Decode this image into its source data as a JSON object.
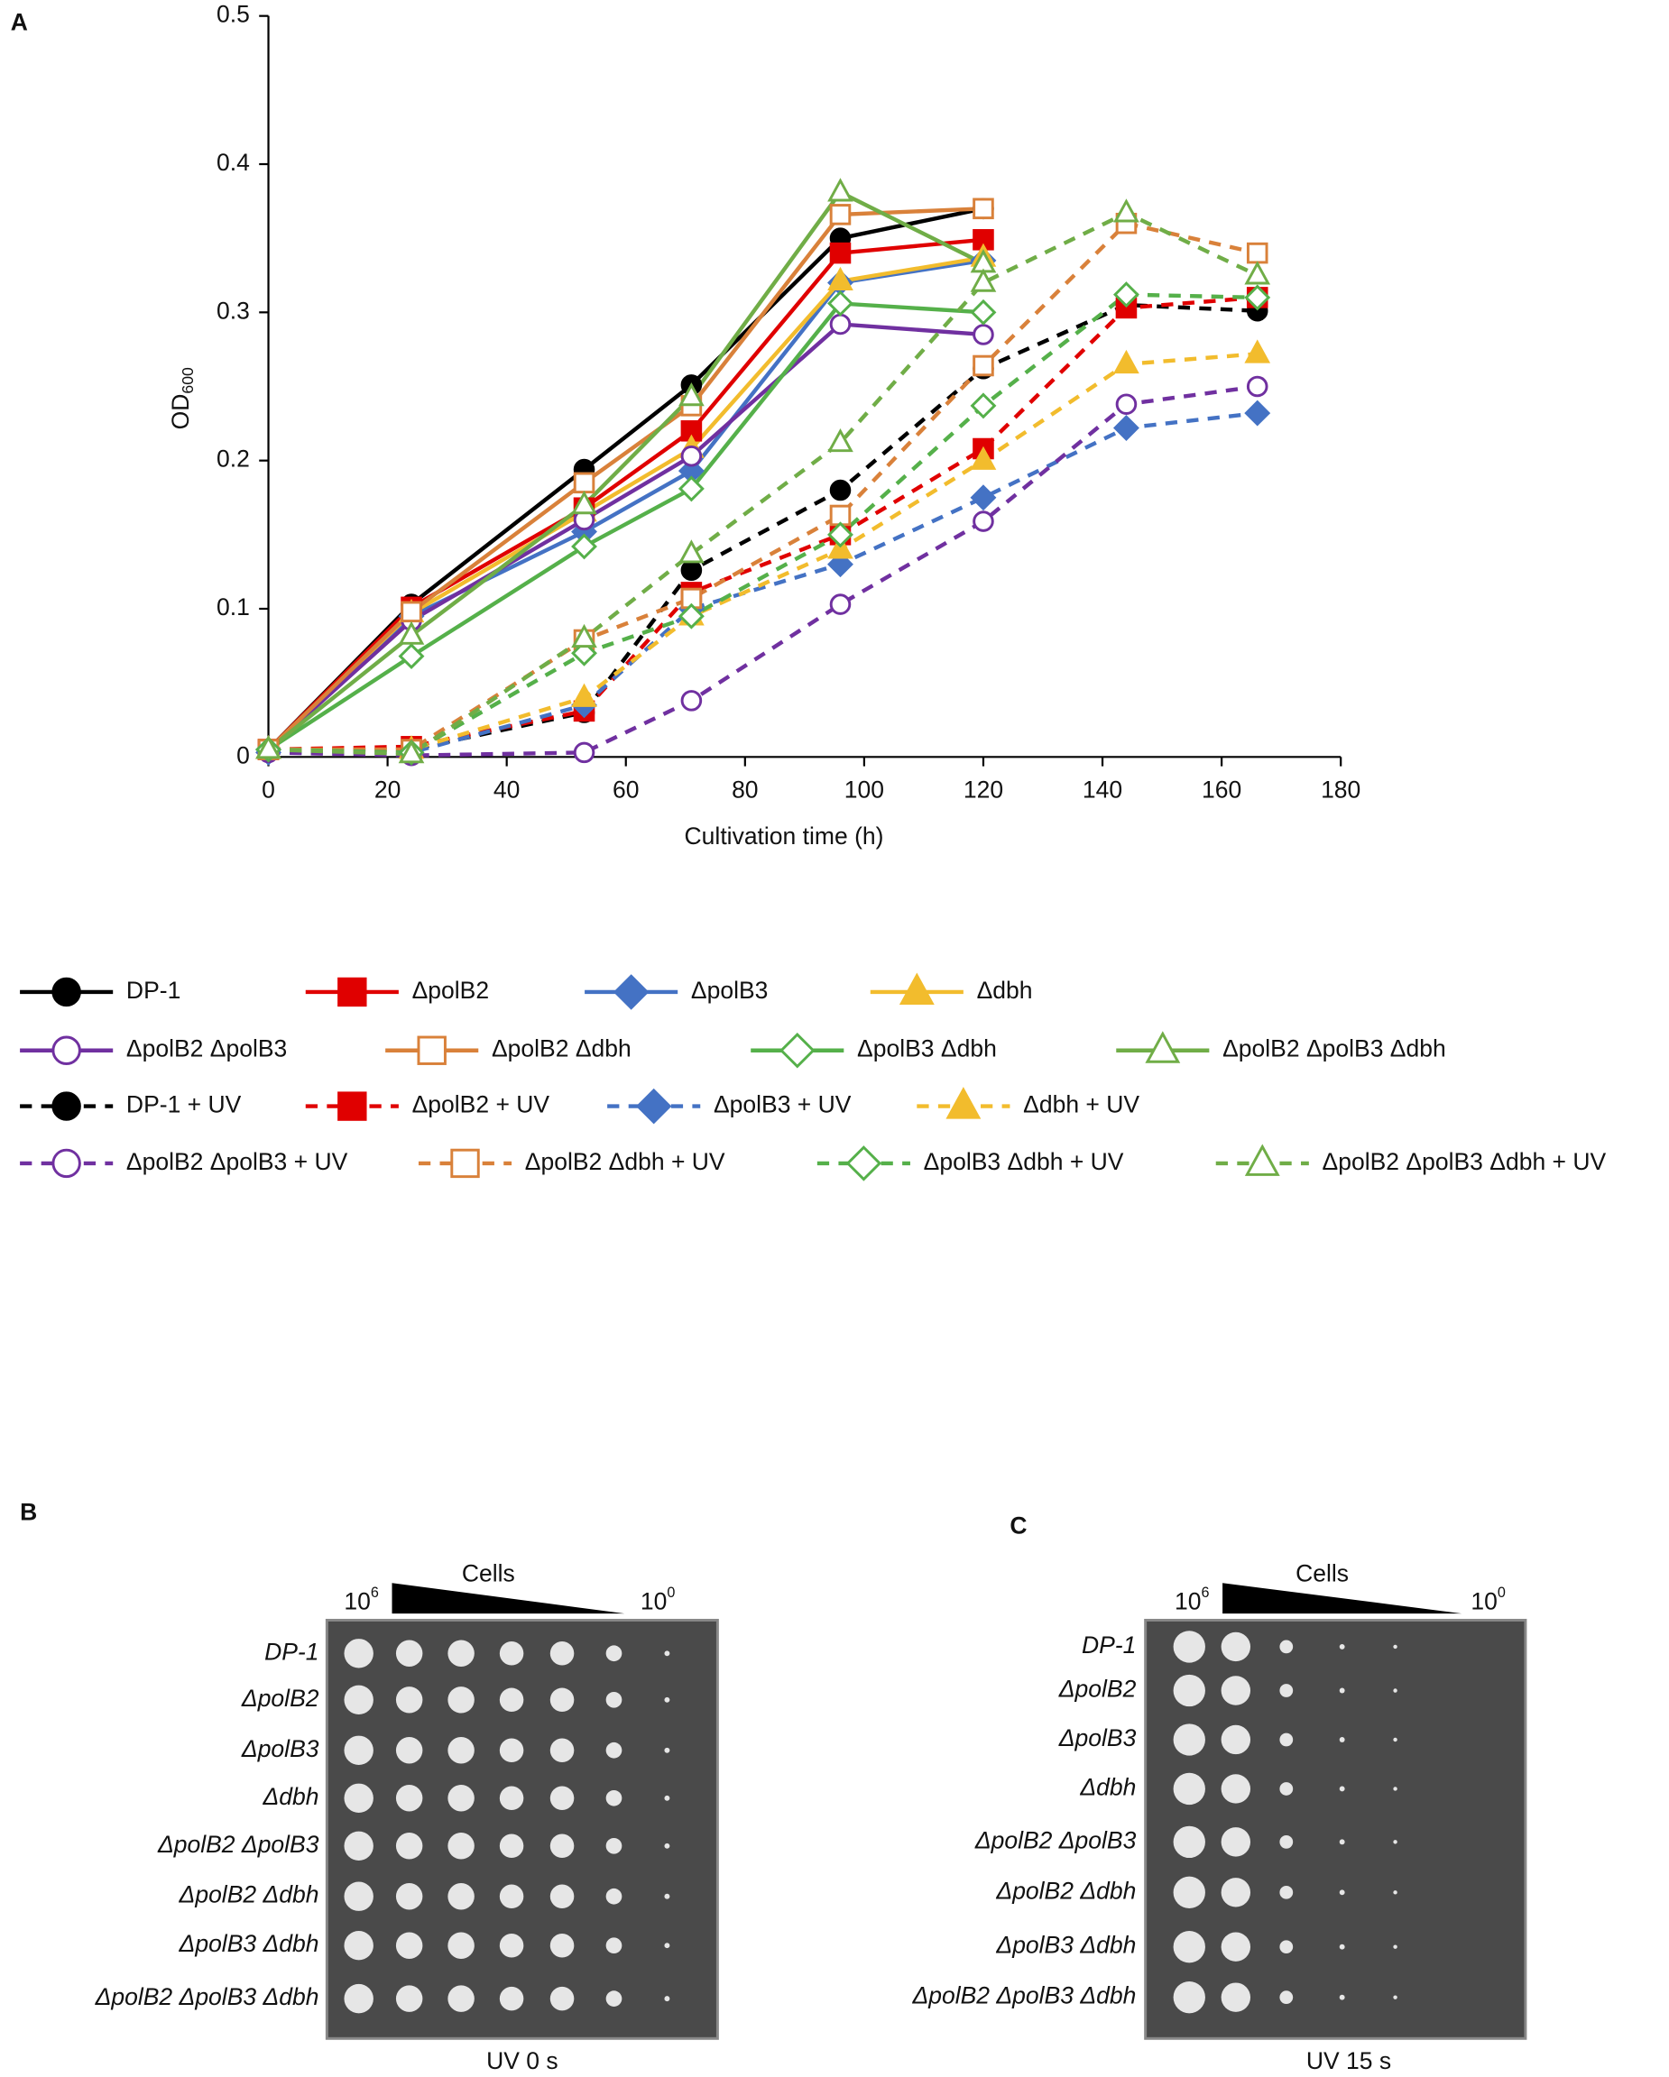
{
  "chart_data": {
    "type": "line",
    "panel_label": "A",
    "ylabel": "OD",
    "ylabel_sub": "600",
    "xlabel": "Cultivation time (h)",
    "x": [
      0,
      24,
      53,
      71,
      96,
      120,
      144,
      166
    ],
    "xlim": [
      0,
      180
    ],
    "xticks": [
      0,
      20,
      40,
      60,
      80,
      100,
      120,
      140,
      160,
      180
    ],
    "ylim": [
      0,
      0.5
    ],
    "yticks": [
      0,
      0.1,
      0.2,
      0.3,
      0.4,
      0.5
    ],
    "series": [
      {
        "name": "DP-1",
        "color": "#000000",
        "marker": "circle",
        "filled": true,
        "dashed": false,
        "values": [
          0.005,
          0.103,
          0.194,
          0.251,
          0.35,
          0.37,
          null,
          null
        ]
      },
      {
        "name": "ΔpolB2",
        "color": "#e00000",
        "marker": "square",
        "filled": true,
        "dashed": false,
        "values": [
          0.005,
          0.101,
          0.168,
          0.22,
          0.34,
          0.349,
          null,
          null
        ]
      },
      {
        "name": "ΔpolB3",
        "color": "#4472c4",
        "marker": "diamond",
        "filled": true,
        "dashed": false,
        "values": [
          0.005,
          0.095,
          0.152,
          0.193,
          0.32,
          0.335,
          null,
          null
        ]
      },
      {
        "name": "Δdbh",
        "color": "#f2bc2d",
        "marker": "triangle",
        "filled": true,
        "dashed": false,
        "values": [
          0.005,
          0.097,
          0.165,
          0.208,
          0.321,
          0.337,
          null,
          null
        ]
      },
      {
        "name": "ΔpolB2 ΔpolB3",
        "color": "#7030a0",
        "marker": "circle",
        "filled": false,
        "dashed": false,
        "values": [
          0.005,
          0.092,
          0.16,
          0.203,
          0.292,
          0.285,
          null,
          null
        ]
      },
      {
        "name": "ΔpolB2 Δdbh",
        "color": "#d9813a",
        "marker": "square",
        "filled": false,
        "dashed": false,
        "values": [
          0.005,
          0.098,
          0.185,
          0.237,
          0.366,
          0.37,
          null,
          null
        ]
      },
      {
        "name": "ΔpolB3 Δdbh",
        "color": "#55b04a",
        "marker": "diamond",
        "filled": false,
        "dashed": false,
        "values": [
          0.005,
          0.068,
          0.142,
          0.181,
          0.306,
          0.3,
          null,
          null
        ]
      },
      {
        "name": "ΔpolB2 ΔpolB3 Δdbh",
        "color": "#70ad47",
        "marker": "triangle",
        "filled": false,
        "dashed": false,
        "values": [
          0.005,
          0.082,
          0.17,
          0.243,
          0.381,
          0.333,
          null,
          null
        ]
      },
      {
        "name": "DP-1 + UV",
        "color": "#000000",
        "marker": "circle",
        "filled": true,
        "dashed": true,
        "values": [
          0.005,
          0.005,
          0.03,
          0.126,
          0.18,
          0.262,
          0.305,
          0.301
        ]
      },
      {
        "name": "ΔpolB2 + UV",
        "color": "#e00000",
        "marker": "square",
        "filled": true,
        "dashed": true,
        "values": [
          0.005,
          0.007,
          0.031,
          0.111,
          0.15,
          0.208,
          0.303,
          0.31
        ]
      },
      {
        "name": "ΔpolB3 + UV",
        "color": "#4472c4",
        "marker": "diamond",
        "filled": true,
        "dashed": true,
        "values": [
          0.003,
          0.003,
          0.035,
          0.1,
          0.13,
          0.175,
          0.222,
          0.232
        ]
      },
      {
        "name": "Δdbh + UV",
        "color": "#f2bc2d",
        "marker": "triangle",
        "filled": true,
        "dashed": true,
        "values": [
          0.005,
          0.005,
          0.04,
          0.095,
          0.14,
          0.2,
          0.265,
          0.272
        ]
      },
      {
        "name": "ΔpolB2 ΔpolB3 + UV",
        "color": "#7030a0",
        "marker": "circle",
        "filled": false,
        "dashed": true,
        "values": [
          0.003,
          0.001,
          0.003,
          0.038,
          0.103,
          0.159,
          0.238,
          0.25
        ]
      },
      {
        "name": "ΔpolB2 Δdbh + UV",
        "color": "#d9813a",
        "marker": "square",
        "filled": false,
        "dashed": true,
        "values": [
          0.005,
          0.005,
          0.079,
          0.107,
          0.163,
          0.264,
          0.36,
          0.34
        ]
      },
      {
        "name": "ΔpolB3 Δdbh + UV",
        "color": "#55b04a",
        "marker": "diamond",
        "filled": false,
        "dashed": true,
        "values": [
          0.005,
          0.003,
          0.07,
          0.095,
          0.15,
          0.237,
          0.312,
          0.31
        ]
      },
      {
        "name": "ΔpolB2 ΔpolB3 Δdbh + UV",
        "color": "#70ad47",
        "marker": "triangle",
        "filled": false,
        "dashed": true,
        "values": [
          0.005,
          0.002,
          0.08,
          0.137,
          0.212,
          0.32,
          0.367,
          0.325
        ]
      }
    ]
  },
  "panels": {
    "B": {
      "label": "B",
      "header": "Cells",
      "start_base": "10",
      "start_exp": "6",
      "end_base": "10",
      "end_exp": "0",
      "caption": "UV 0 s",
      "rows": [
        "DP-1",
        "ΔpolB2",
        "ΔpolB3",
        "Δdbh",
        "ΔpolB2 ΔpolB3",
        "ΔpolB2 Δdbh",
        "ΔpolB3 Δdbh",
        "ΔpolB2 ΔpolB3 Δdbh"
      ]
    },
    "C": {
      "label": "C",
      "header": "Cells",
      "start_base": "10",
      "start_exp": "6",
      "end_base": "10",
      "end_exp": "0",
      "caption": "UV 15 s",
      "rows": [
        "DP-1",
        "ΔpolB2",
        "ΔpolB3",
        "Δdbh",
        "ΔpolB2 ΔpolB3",
        "ΔpolB2 Δdbh",
        "ΔpolB3 Δdbh",
        "ΔpolB2 ΔpolB3 Δdbh"
      ]
    }
  }
}
